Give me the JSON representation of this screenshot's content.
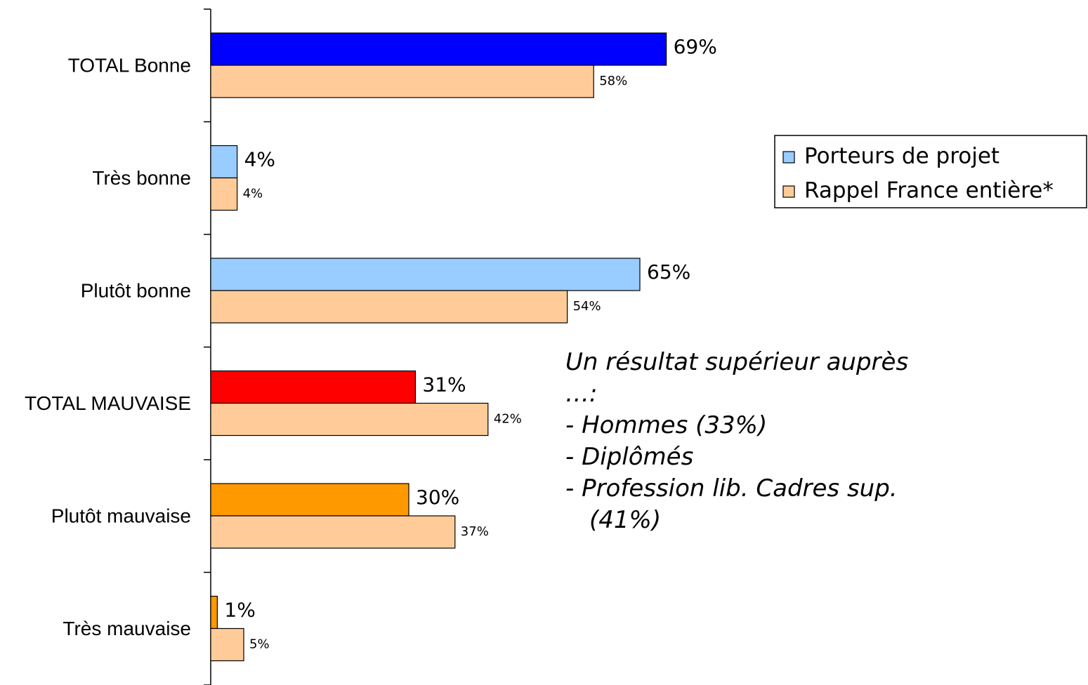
{
  "chart_data": {
    "type": "bar",
    "orientation": "horizontal",
    "categories": [
      "TOTAL Bonne",
      "Très bonne",
      "Plutôt bonne",
      "TOTAL MAUVAISE",
      "Plutôt mauvaise",
      "Très mauvaise"
    ],
    "series": [
      {
        "name": "Porteurs de projet",
        "color": "#99ccff",
        "colors": [
          "#0000ff",
          "#99ccff",
          "#99ccff",
          "#ff0000",
          "#ff9900",
          "#ff9900"
        ],
        "values": [
          69,
          4,
          65,
          31,
          30,
          1
        ],
        "value_labels": [
          "69%",
          "4%",
          "65%",
          "31%",
          "30%",
          "1%"
        ]
      },
      {
        "name": "Rappel France entière*",
        "color": "#ffcc99",
        "values": [
          58,
          4,
          54,
          42,
          37,
          5
        ],
        "value_labels": [
          "58%",
          "4%",
          "54%",
          "42%",
          "37%",
          "5%"
        ]
      }
    ],
    "legend": "right",
    "annotation": {
      "title": "Un résultat supérieur auprès …:",
      "items": [
        "- Hommes (33%)",
        "- Diplômés",
        "- Profession lib. Cadres sup. (41%)"
      ]
    }
  }
}
